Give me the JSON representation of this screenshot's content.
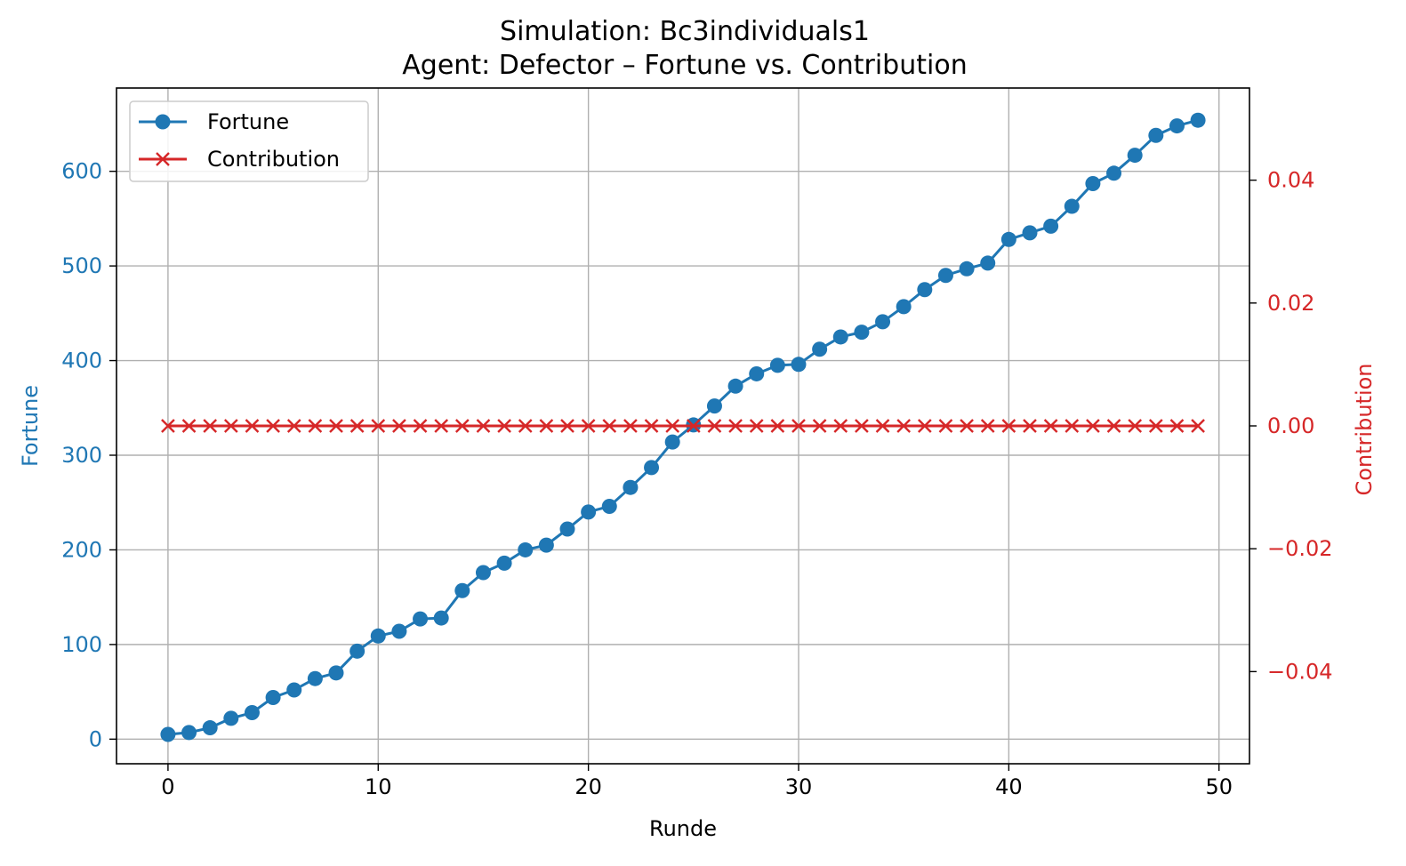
{
  "chart_data": {
    "type": "line",
    "title": "Simulation: Bc3individuals1",
    "subtitle": "Agent: Defector – Fortune vs. Contribution",
    "xlabel": "Runde",
    "ylabel": "Fortune",
    "ylabel_right": "Contribution",
    "xlim": [
      -2.45,
      51.45
    ],
    "ylim": [
      -26,
      688
    ],
    "ylim_right": [
      -0.055,
      0.055
    ],
    "x_ticks": [
      "0",
      "10",
      "20",
      "30",
      "40",
      "50"
    ],
    "y_ticks": [
      "0",
      "100",
      "200",
      "300",
      "400",
      "500",
      "600"
    ],
    "y_ticks_right": [
      "−0.04",
      "−0.02",
      "0.00",
      "0.02",
      "0.04"
    ],
    "grid": true,
    "legend_position": "upper-left",
    "x": [
      0,
      1,
      2,
      3,
      4,
      5,
      6,
      7,
      8,
      9,
      10,
      11,
      12,
      13,
      14,
      15,
      16,
      17,
      18,
      19,
      20,
      21,
      22,
      23,
      24,
      25,
      26,
      27,
      28,
      29,
      30,
      31,
      32,
      33,
      34,
      35,
      36,
      37,
      38,
      39,
      40,
      41,
      42,
      43,
      44,
      45,
      46,
      47,
      48,
      49
    ],
    "series": [
      {
        "name": "Fortune",
        "axis": "left",
        "color": "#1f77b4",
        "marker": "circle",
        "values": [
          5,
          7,
          12,
          22,
          28,
          44,
          52,
          64,
          70,
          93,
          109,
          114,
          127,
          128,
          157,
          176,
          186,
          200,
          205,
          222,
          240,
          246,
          266,
          287,
          314,
          332,
          352,
          373,
          386,
          395,
          396,
          412,
          425,
          430,
          441,
          457,
          475,
          490,
          497,
          503,
          528,
          535,
          542,
          563,
          587,
          598,
          617,
          638,
          648,
          654
        ]
      },
      {
        "name": "Contribution",
        "axis": "right",
        "color": "#d62728",
        "marker": "x",
        "values": [
          0,
          0,
          0,
          0,
          0,
          0,
          0,
          0,
          0,
          0,
          0,
          0,
          0,
          0,
          0,
          0,
          0,
          0,
          0,
          0,
          0,
          0,
          0,
          0,
          0,
          0,
          0,
          0,
          0,
          0,
          0,
          0,
          0,
          0,
          0,
          0,
          0,
          0,
          0,
          0,
          0,
          0,
          0,
          0,
          0,
          0,
          0,
          0,
          0,
          0
        ]
      }
    ]
  }
}
